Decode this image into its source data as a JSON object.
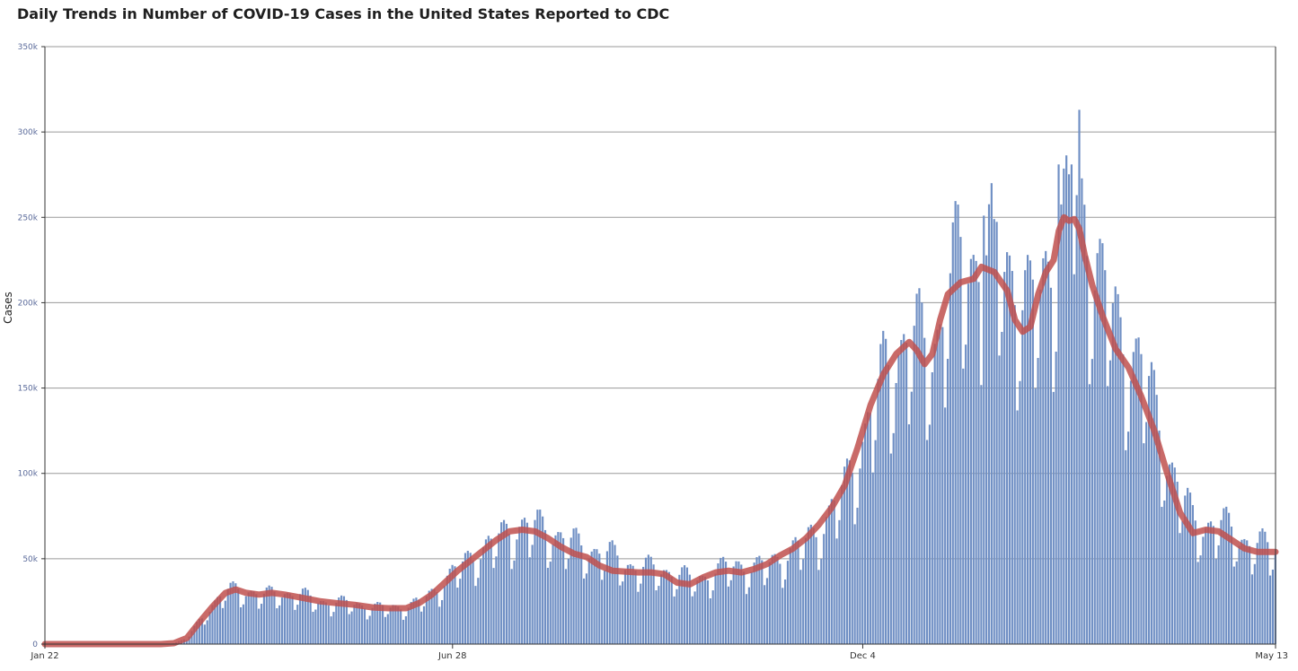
{
  "chart_data": {
    "type": "bar",
    "title": "Daily Trends in Number of COVID-19 Cases in the United States Reported to CDC",
    "ylabel": "Cases",
    "xlabel": "",
    "ylim": [
      0,
      350000
    ],
    "y_ticks": [
      {
        "value": 0,
        "label": "0"
      },
      {
        "value": 50000,
        "label": "50k"
      },
      {
        "value": 100000,
        "label": "100k"
      },
      {
        "value": 150000,
        "label": "150k"
      },
      {
        "value": 200000,
        "label": "200k"
      },
      {
        "value": 250000,
        "label": "250k"
      },
      {
        "value": 300000,
        "label": "300k"
      },
      {
        "value": 350000,
        "label": "350k"
      }
    ],
    "x_ticks": [
      {
        "day": 0,
        "label": "Jan 22"
      },
      {
        "day": 158,
        "label": "Jun 28"
      },
      {
        "day": 317,
        "label": "Dec 4"
      },
      {
        "day": 477,
        "label": "May 13"
      }
    ],
    "x_range": [
      0,
      477
    ],
    "grid": true,
    "series": [
      {
        "type": "bar",
        "color": "#6f8fc4",
        "noise": 0.1,
        "anchors": [
          [
            0,
            0
          ],
          [
            45,
            0
          ],
          [
            50,
            500
          ],
          [
            55,
            3000
          ],
          [
            60,
            13000
          ],
          [
            65,
            22000
          ],
          [
            70,
            29000
          ],
          [
            75,
            31000
          ],
          [
            80,
            29000
          ],
          [
            85,
            27000
          ],
          [
            90,
            29000
          ],
          [
            95,
            28000
          ],
          [
            100,
            27000
          ],
          [
            105,
            25000
          ],
          [
            110,
            23000
          ],
          [
            115,
            23000
          ],
          [
            120,
            23000
          ],
          [
            125,
            21000
          ],
          [
            130,
            20000
          ],
          [
            135,
            21000
          ],
          [
            140,
            21000
          ],
          [
            145,
            23000
          ],
          [
            150,
            29000
          ],
          [
            155,
            35000
          ],
          [
            160,
            42000
          ],
          [
            165,
            49000
          ],
          [
            170,
            53000
          ],
          [
            175,
            58000
          ],
          [
            180,
            64000
          ],
          [
            185,
            66000
          ],
          [
            190,
            66000
          ],
          [
            195,
            64000
          ],
          [
            200,
            60000
          ],
          [
            205,
            56000
          ],
          [
            210,
            53000
          ],
          [
            215,
            52000
          ],
          [
            220,
            49000
          ],
          [
            225,
            45000
          ],
          [
            230,
            43000
          ],
          [
            235,
            42000
          ],
          [
            240,
            41000
          ],
          [
            245,
            40000
          ],
          [
            250,
            36000
          ],
          [
            255,
            37000
          ],
          [
            260,
            41000
          ],
          [
            265,
            43000
          ],
          [
            270,
            44000
          ],
          [
            275,
            43000
          ],
          [
            280,
            44000
          ],
          [
            285,
            48000
          ],
          [
            290,
            53000
          ],
          [
            295,
            57000
          ],
          [
            300,
            64000
          ],
          [
            305,
            75000
          ],
          [
            310,
            87000
          ],
          [
            315,
            105000
          ],
          [
            320,
            128000
          ],
          [
            325,
            150000
          ],
          [
            330,
            162000
          ],
          [
            335,
            174000
          ],
          [
            340,
            167000
          ],
          [
            343,
            162000
          ],
          [
            347,
            178000
          ],
          [
            350,
            200000
          ],
          [
            355,
            215000
          ],
          [
            360,
            215000
          ],
          [
            365,
            218000
          ],
          [
            370,
            220000
          ],
          [
            375,
            210000
          ],
          [
            378,
            195000
          ],
          [
            382,
            185000
          ],
          [
            385,
            195000
          ],
          [
            388,
            210000
          ],
          [
            393,
            225000
          ],
          [
            398,
            248000
          ],
          [
            400,
            247000
          ],
          [
            403,
            240000
          ],
          [
            406,
            220000
          ],
          [
            410,
            200000
          ],
          [
            415,
            180000
          ],
          [
            420,
            165000
          ],
          [
            425,
            155000
          ],
          [
            430,
            135000
          ],
          [
            435,
            105000
          ],
          [
            440,
            85000
          ],
          [
            445,
            70000
          ],
          [
            450,
            66000
          ],
          [
            455,
            67000
          ],
          [
            460,
            64000
          ],
          [
            465,
            58000
          ],
          [
            470,
            55000
          ],
          [
            475,
            54000
          ],
          [
            477,
            54000
          ]
        ],
        "spikes": [
          [
            401,
            313000
          ],
          [
            398,
            281000
          ],
          [
            393,
            281000
          ],
          [
            364,
            251000
          ],
          [
            368,
            249000
          ]
        ]
      },
      {
        "type": "line",
        "color": "#c0504d",
        "points": [
          [
            0,
            0
          ],
          [
            45,
            0
          ],
          [
            50,
            500
          ],
          [
            55,
            3500
          ],
          [
            60,
            13000
          ],
          [
            65,
            22000
          ],
          [
            70,
            30000
          ],
          [
            74,
            32000
          ],
          [
            78,
            30000
          ],
          [
            83,
            29000
          ],
          [
            88,
            30000
          ],
          [
            93,
            29000
          ],
          [
            100,
            27000
          ],
          [
            107,
            25000
          ],
          [
            113,
            24000
          ],
          [
            120,
            23000
          ],
          [
            127,
            21500
          ],
          [
            133,
            21000
          ],
          [
            140,
            21000
          ],
          [
            145,
            24000
          ],
          [
            150,
            29000
          ],
          [
            155,
            36000
          ],
          [
            160,
            43000
          ],
          [
            165,
            49000
          ],
          [
            170,
            55000
          ],
          [
            175,
            61000
          ],
          [
            180,
            66000
          ],
          [
            185,
            67000
          ],
          [
            190,
            66000
          ],
          [
            195,
            62000
          ],
          [
            200,
            57000
          ],
          [
            205,
            53000
          ],
          [
            210,
            51000
          ],
          [
            215,
            46000
          ],
          [
            220,
            43000
          ],
          [
            230,
            42000
          ],
          [
            235,
            42000
          ],
          [
            240,
            41000
          ],
          [
            245,
            36000
          ],
          [
            250,
            35000
          ],
          [
            255,
            39000
          ],
          [
            260,
            42000
          ],
          [
            265,
            43000
          ],
          [
            270,
            42000
          ],
          [
            275,
            44000
          ],
          [
            280,
            47000
          ],
          [
            285,
            52000
          ],
          [
            290,
            56000
          ],
          [
            295,
            62000
          ],
          [
            300,
            70000
          ],
          [
            305,
            80000
          ],
          [
            310,
            93000
          ],
          [
            315,
            115000
          ],
          [
            320,
            140000
          ],
          [
            325,
            158000
          ],
          [
            330,
            170000
          ],
          [
            335,
            177000
          ],
          [
            338,
            172000
          ],
          [
            341,
            164000
          ],
          [
            344,
            170000
          ],
          [
            347,
            190000
          ],
          [
            350,
            205000
          ],
          [
            355,
            212000
          ],
          [
            360,
            214000
          ],
          [
            363,
            221000
          ],
          [
            368,
            218000
          ],
          [
            373,
            207000
          ],
          [
            376,
            190000
          ],
          [
            379,
            183000
          ],
          [
            382,
            186000
          ],
          [
            385,
            205000
          ],
          [
            388,
            218000
          ],
          [
            391,
            225000
          ],
          [
            393,
            242000
          ],
          [
            395,
            250000
          ],
          [
            397,
            248000
          ],
          [
            399,
            249000
          ],
          [
            401,
            243000
          ],
          [
            403,
            228000
          ],
          [
            406,
            210000
          ],
          [
            410,
            192000
          ],
          [
            415,
            173000
          ],
          [
            420,
            162000
          ],
          [
            425,
            145000
          ],
          [
            430,
            125000
          ],
          [
            435,
            100000
          ],
          [
            440,
            77000
          ],
          [
            445,
            65000
          ],
          [
            450,
            67000
          ],
          [
            455,
            66000
          ],
          [
            460,
            61000
          ],
          [
            465,
            56000
          ],
          [
            470,
            54000
          ],
          [
            475,
            54000
          ],
          [
            477,
            54000
          ]
        ]
      }
    ]
  }
}
